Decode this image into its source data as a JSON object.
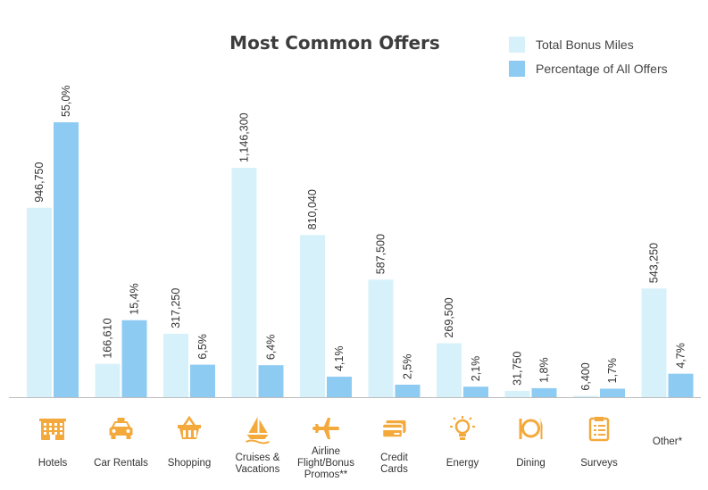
{
  "chart_data": {
    "type": "bar",
    "title": "Most Common Offers",
    "categories": [
      "Hotels",
      "Car Rentals",
      "Shopping",
      "Cruises & Vacations",
      "Airline Flight/Bonus Promos**",
      "Credit Cards",
      "Energy",
      "Dining",
      "Surveys",
      "Other*"
    ],
    "category_lines": [
      [
        "Hotels"
      ],
      [
        "Car Rentals"
      ],
      [
        "Shopping"
      ],
      [
        "Cruises &",
        "Vacations"
      ],
      [
        "Airline",
        "Flight/Bonus",
        "Promos**"
      ],
      [
        "Credit",
        "Cards"
      ],
      [
        "Energy"
      ],
      [
        "Dining"
      ],
      [
        "Surveys"
      ],
      [
        "Other*"
      ]
    ],
    "icons": [
      "hotel-icon",
      "car-icon",
      "shopping-basket-icon",
      "sailboat-icon",
      "airplane-icon",
      "credit-card-icon",
      "lightbulb-icon",
      "dining-icon",
      "clipboard-icon",
      null
    ],
    "series": [
      {
        "name": "Total Bonus Miles",
        "color": "#d7f1fb",
        "values": [
          946750,
          166610,
          317250,
          1146300,
          810040,
          587500,
          269500,
          31750,
          6400,
          543250
        ],
        "labels": [
          "946,750",
          "166,610",
          "317,250",
          "1,146,300",
          "810,040",
          "587,500",
          "269,500",
          "31,750",
          "6,400",
          "543,250"
        ]
      },
      {
        "name": "Percentage of All Offers",
        "color": "#8ecbf3",
        "values": [
          55.0,
          15.4,
          6.5,
          6.4,
          4.1,
          2.5,
          2.1,
          1.8,
          1.7,
          4.7
        ],
        "labels": [
          "55,0%",
          "15,4%",
          "6,5%",
          "6,4%",
          "4,1%",
          "2,5%",
          "2,1%",
          "1,8%",
          "1,7%",
          "4,7%"
        ]
      }
    ],
    "icon_color": "#f4a93c",
    "axis_color": "#bdbdbd",
    "grid": false,
    "legend_position": "top-right"
  }
}
